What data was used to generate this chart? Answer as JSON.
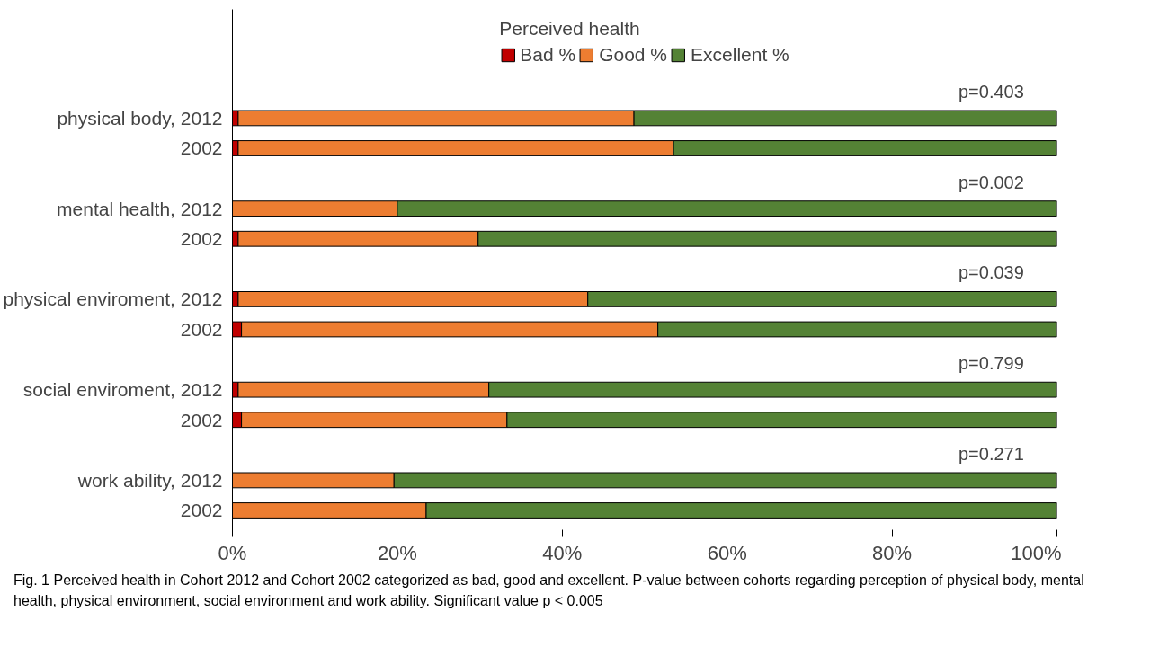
{
  "chart_data": {
    "type": "bar",
    "orientation": "horizontal",
    "stacked": true,
    "legend_title": "Perceived health",
    "legend": "top",
    "categories": [
      "physical body, 2012",
      "2002",
      "mental health, 2012",
      "2002",
      "physical enviroment, 2012",
      "2002",
      "social enviroment, 2012",
      "2002",
      "work ability, 2012",
      "2002"
    ],
    "series": [
      {
        "name": "Bad %",
        "color": "#c00000",
        "values": [
          0.7,
          0.7,
          0,
          0.7,
          0.7,
          1.1,
          0.7,
          1.1,
          0,
          0
        ]
      },
      {
        "name": "Good %",
        "color": "#ed7d31",
        "values": [
          48,
          52.8,
          20,
          29.1,
          42.4,
          50.5,
          30.4,
          32.2,
          19.6,
          23.5
        ]
      },
      {
        "name": "Excellent %",
        "color": "#548235",
        "values": [
          51.3,
          46.5,
          80,
          70.2,
          56.9,
          48.4,
          68.9,
          66.7,
          80.4,
          76.5
        ]
      }
    ],
    "xlim": [
      0,
      100
    ],
    "xticks": [
      {
        "value": 0,
        "label": "0%"
      },
      {
        "value": 20,
        "label": "20%"
      },
      {
        "value": 40,
        "label": "40%"
      },
      {
        "value": 60,
        "label": "60%"
      },
      {
        "value": 80,
        "label": "80%"
      },
      {
        "value": 100,
        "label": "100%"
      }
    ],
    "grid": false,
    "annotations": [
      "p=0.403",
      "p=0.002",
      "p=0.039",
      "p=0.799",
      "p=0.271",
      "Fig. 1 Perceived health in Cohort 2012 and Cohort 2002 categorized as bad, good and excellent. P-value between cohorts regarding perception of physical body, mental health, physical environment, social environment and work ability. Significant value p < 0.005"
    ]
  }
}
